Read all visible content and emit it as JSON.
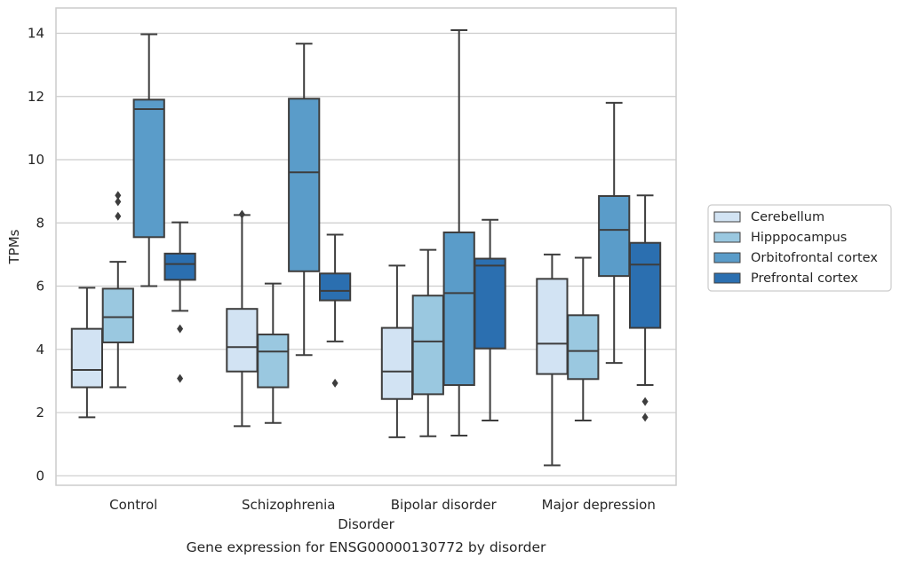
{
  "chart_data": {
    "type": "box",
    "title": "",
    "caption": "Gene expression for ENSG00000130772 by disorder",
    "xlabel": "Disorder",
    "ylabel": "TPMs",
    "ylim": [
      -0.3,
      14.8
    ],
    "yticks": [
      0,
      2,
      4,
      6,
      8,
      10,
      12,
      14
    ],
    "grid": "horizontal",
    "legend_position": "right",
    "categories": [
      "Control",
      "Schizophrenia",
      "Bipolar disorder",
      "Major depression"
    ],
    "series": [
      {
        "name": "Cerebellum",
        "color": "#d2e3f3",
        "boxes": [
          {
            "whislo": 1.85,
            "q1": 2.8,
            "med": 3.35,
            "q3": 4.65,
            "whishi": 5.95,
            "fliers": []
          },
          {
            "whislo": 1.57,
            "q1": 3.3,
            "med": 4.07,
            "q3": 5.28,
            "whishi": 8.25,
            "fliers": [
              8.27
            ]
          },
          {
            "whislo": 1.22,
            "q1": 2.43,
            "med": 3.3,
            "q3": 4.68,
            "whishi": 6.65,
            "fliers": []
          },
          {
            "whislo": 0.33,
            "q1": 3.22,
            "med": 4.18,
            "q3": 6.23,
            "whishi": 7.0,
            "fliers": []
          }
        ]
      },
      {
        "name": "Hipppocampus",
        "color": "#9ac8e0",
        "boxes": [
          {
            "whislo": 2.8,
            "q1": 4.22,
            "med": 5.02,
            "q3": 5.92,
            "whishi": 6.77,
            "fliers": [
              8.87,
              8.21,
              8.67
            ]
          },
          {
            "whislo": 1.67,
            "q1": 2.8,
            "med": 3.93,
            "q3": 4.47,
            "whishi": 6.08,
            "fliers": []
          },
          {
            "whislo": 1.25,
            "q1": 2.58,
            "med": 4.25,
            "q3": 5.7,
            "whishi": 7.15,
            "fliers": []
          },
          {
            "whislo": 1.75,
            "q1": 3.06,
            "med": 3.95,
            "q3": 5.08,
            "whishi": 6.9,
            "fliers": []
          }
        ]
      },
      {
        "name": "Orbitofrontal cortex",
        "color": "#5a9cc9",
        "boxes": [
          {
            "whislo": 6.0,
            "q1": 7.55,
            "med": 11.6,
            "q3": 11.9,
            "whishi": 13.97,
            "fliers": []
          },
          {
            "whislo": 3.82,
            "q1": 6.47,
            "med": 9.6,
            "q3": 11.93,
            "whishi": 13.67,
            "fliers": []
          },
          {
            "whislo": 1.27,
            "q1": 2.87,
            "med": 5.78,
            "q3": 7.7,
            "whishi": 14.1,
            "fliers": []
          },
          {
            "whislo": 3.57,
            "q1": 6.32,
            "med": 7.78,
            "q3": 8.85,
            "whishi": 11.8,
            "fliers": []
          }
        ]
      },
      {
        "name": "Prefrontal cortex",
        "color": "#2b6fb0",
        "boxes": [
          {
            "whislo": 5.22,
            "q1": 6.2,
            "med": 6.7,
            "q3": 7.03,
            "whishi": 8.02,
            "fliers": [
              4.65,
              3.08
            ]
          },
          {
            "whislo": 4.25,
            "q1": 5.55,
            "med": 5.85,
            "q3": 6.4,
            "whishi": 7.63,
            "fliers": [
              2.93
            ]
          },
          {
            "whislo": 1.75,
            "q1": 4.03,
            "med": 6.65,
            "q3": 6.87,
            "whishi": 8.1,
            "fliers": []
          },
          {
            "whislo": 2.87,
            "q1": 4.68,
            "med": 6.68,
            "q3": 7.37,
            "whishi": 8.87,
            "fliers": [
              2.35,
              1.85
            ]
          }
        ]
      }
    ]
  }
}
